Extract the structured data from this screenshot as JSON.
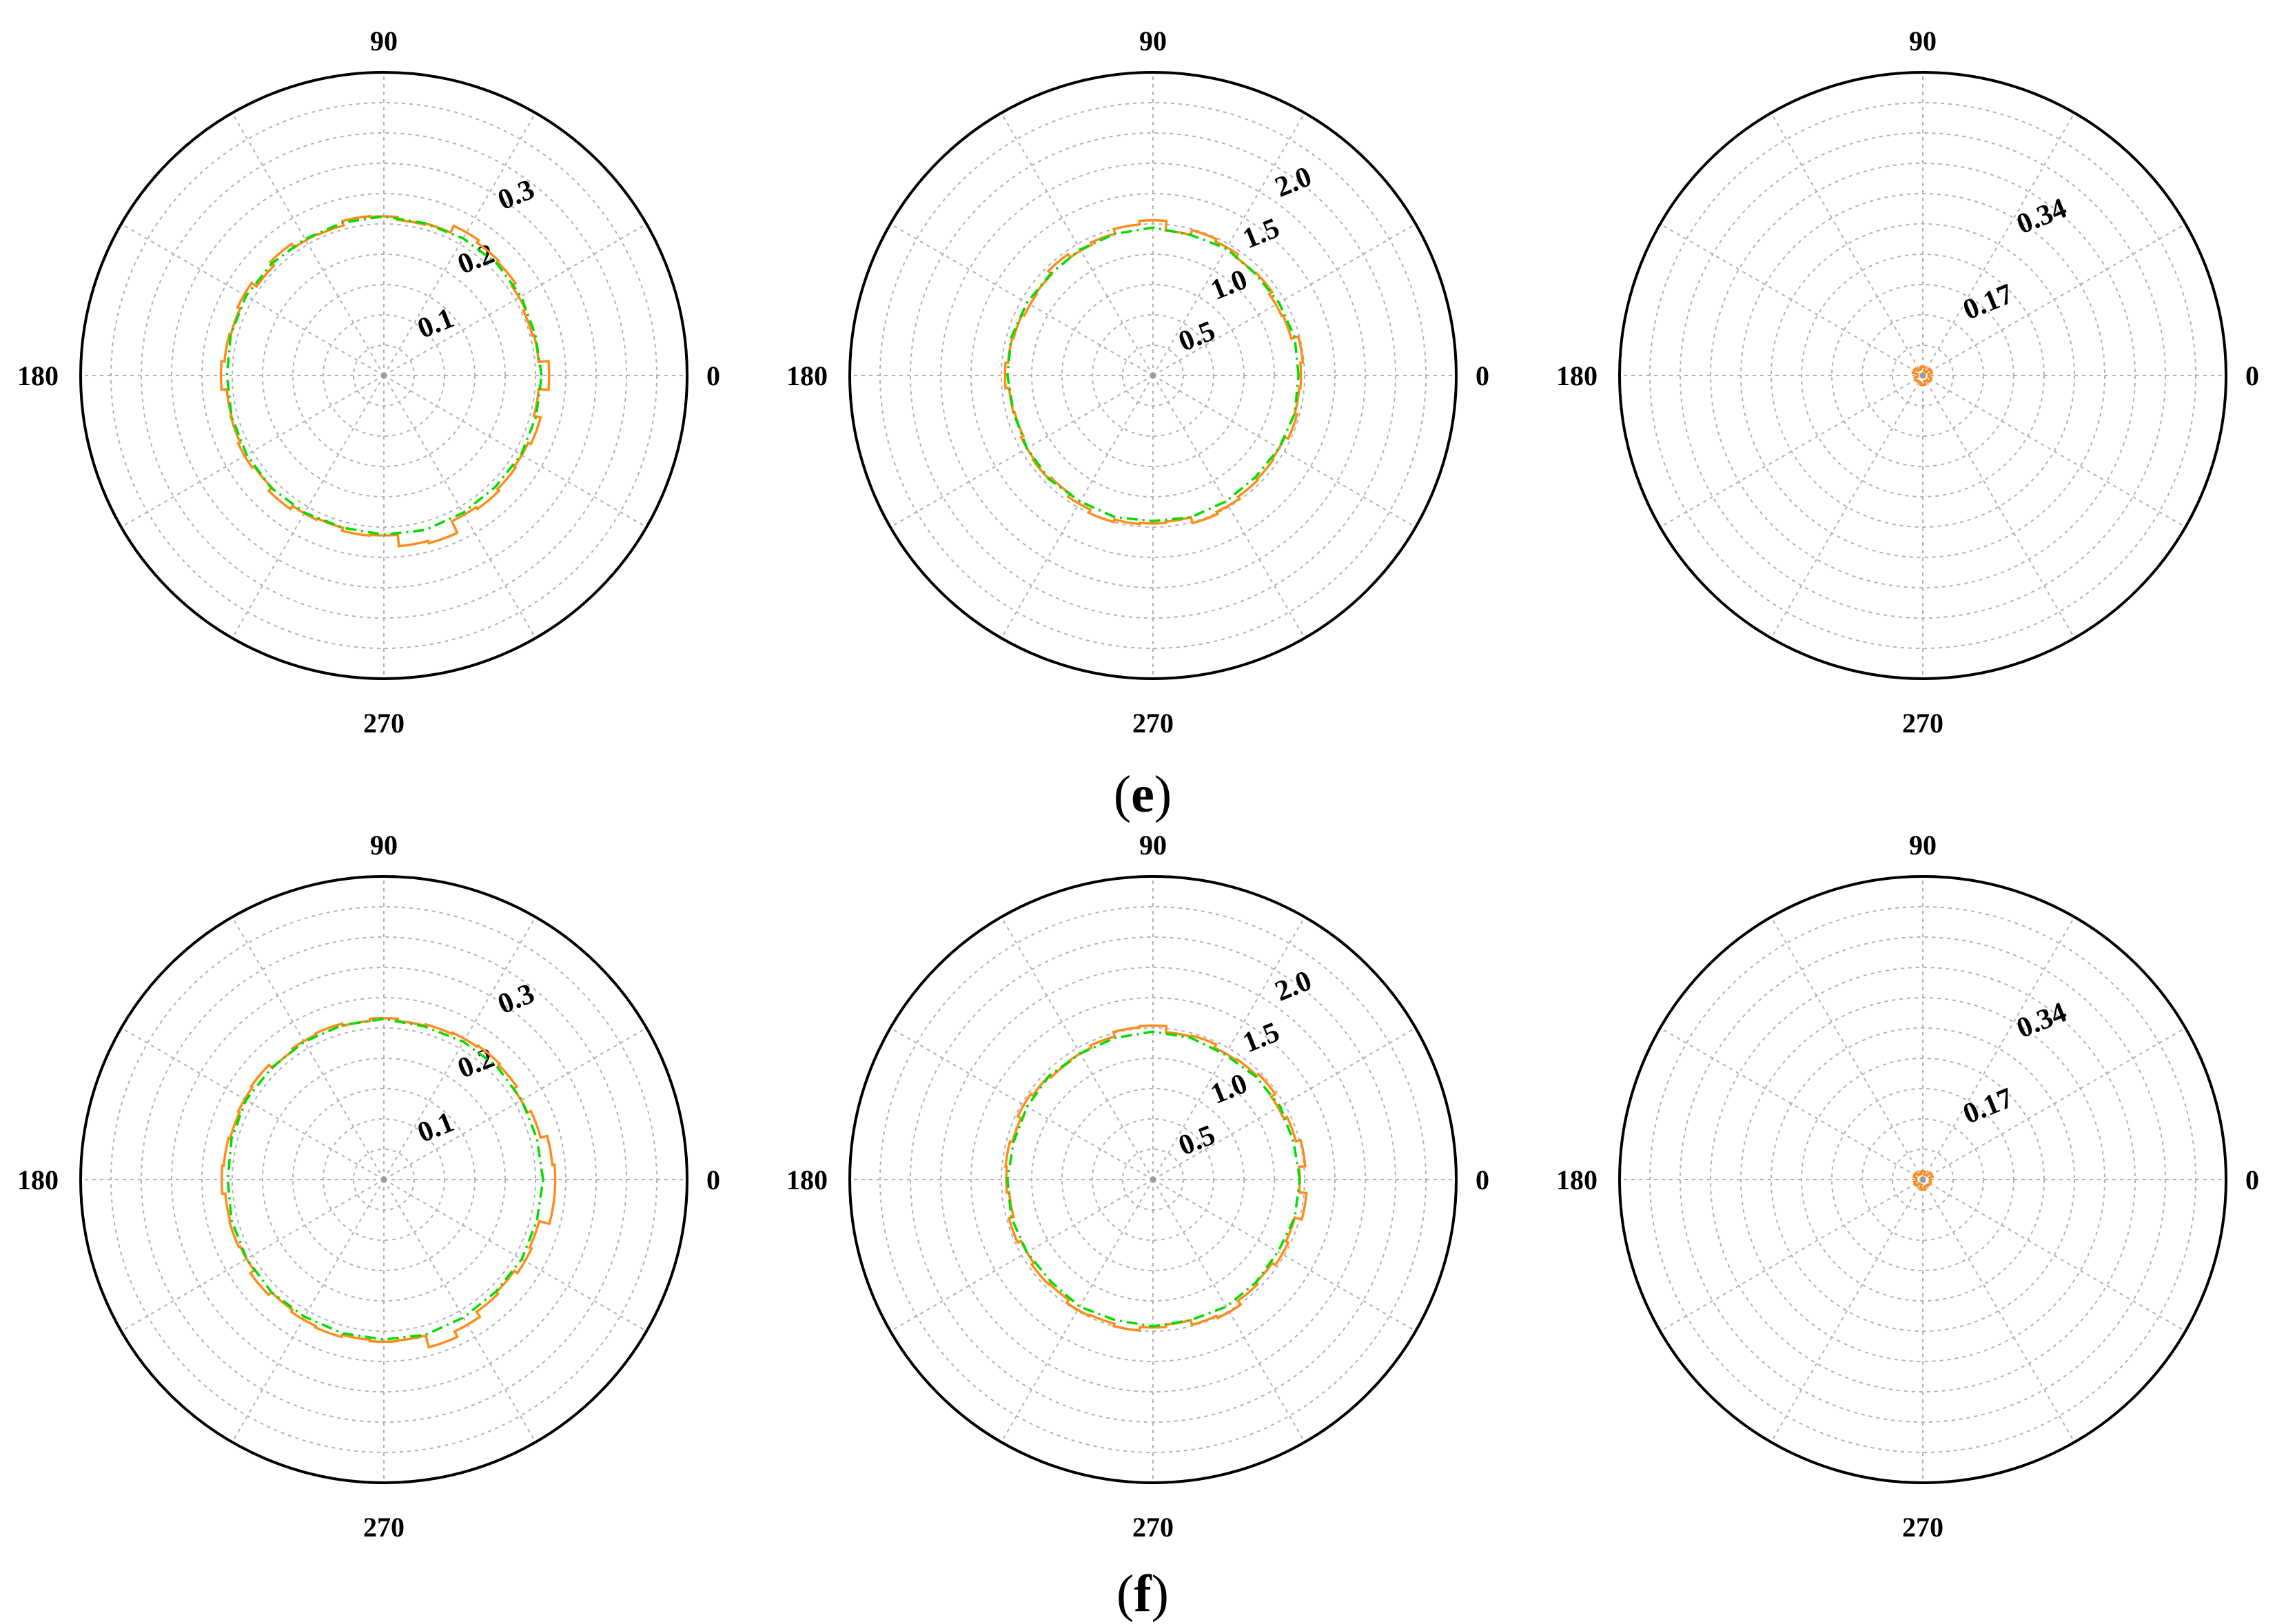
{
  "figure": {
    "panel_captions": [
      {
        "label": "e",
        "open": "(",
        "close": ")"
      },
      {
        "label": "f",
        "open": "(",
        "close": ")"
      }
    ]
  },
  "colors": {
    "series_1": "#ff8c1a",
    "series_2": "#00dd00",
    "grid": "#b0b0b0",
    "outer": "#000000"
  },
  "chart_data": [
    {
      "type": "polar-line",
      "panel": "e",
      "position": "left",
      "angle_ticks": [
        "0",
        "90",
        "180",
        "270"
      ],
      "radial_ticks": [
        "0.1",
        "0.2",
        "0.3"
      ],
      "r_max": 0.4,
      "series": [
        {
          "style": "step",
          "color": "#ff8c1a",
          "theta_deg": [
            0,
            10,
            20,
            30,
            40,
            50,
            60,
            70,
            80,
            90,
            100,
            110,
            120,
            130,
            140,
            150,
            160,
            170,
            180,
            190,
            200,
            210,
            220,
            230,
            240,
            250,
            260,
            270,
            280,
            290,
            300,
            310,
            320,
            330,
            340,
            350
          ],
          "r": [
            0.218,
            0.205,
            0.203,
            0.206,
            0.212,
            0.214,
            0.218,
            0.208,
            0.206,
            0.21,
            0.211,
            0.205,
            0.206,
            0.212,
            0.205,
            0.213,
            0.209,
            0.211,
            0.215,
            0.208,
            0.209,
            0.212,
            0.209,
            0.215,
            0.21,
            0.208,
            0.212,
            0.211,
            0.226,
            0.229,
            0.212,
            0.215,
            0.212,
            0.21,
            0.214,
            0.205
          ]
        },
        {
          "style": "dash-dot",
          "color": "#00dd00",
          "theta_deg": [
            0,
            15,
            30,
            45,
            60,
            75,
            90,
            105,
            120,
            135,
            150,
            165,
            180,
            195,
            210,
            225,
            240,
            255,
            270,
            285,
            300,
            315,
            330,
            345
          ],
          "r": [
            0.208,
            0.207,
            0.209,
            0.21,
            0.209,
            0.208,
            0.21,
            0.209,
            0.208,
            0.209,
            0.21,
            0.209,
            0.207,
            0.208,
            0.209,
            0.21,
            0.209,
            0.208,
            0.21,
            0.211,
            0.209,
            0.208,
            0.209,
            0.208
          ]
        }
      ]
    },
    {
      "type": "polar-line",
      "panel": "e",
      "position": "middle",
      "angle_ticks": [
        "0",
        "90",
        "180",
        "270"
      ],
      "radial_ticks": [
        "0.5",
        "1.0",
        "1.5",
        "2.0"
      ],
      "r_max": 2.5,
      "series": [
        {
          "style": "step",
          "color": "#ff8c1a",
          "theta_deg": [
            0,
            10,
            20,
            30,
            40,
            50,
            60,
            70,
            80,
            90,
            100,
            110,
            120,
            130,
            140,
            150,
            160,
            170,
            180,
            190,
            200,
            210,
            220,
            230,
            240,
            250,
            260,
            270,
            280,
            290,
            300,
            310,
            320,
            330,
            340,
            350
          ],
          "r": [
            1.22,
            1.24,
            1.18,
            1.17,
            1.2,
            1.19,
            1.22,
            1.24,
            1.2,
            1.28,
            1.25,
            1.21,
            1.19,
            1.22,
            1.18,
            1.17,
            1.19,
            1.2,
            1.22,
            1.19,
            1.18,
            1.2,
            1.21,
            1.19,
            1.22,
            1.25,
            1.23,
            1.22,
            1.21,
            1.26,
            1.24,
            1.22,
            1.21,
            1.2,
            1.23,
            1.21
          ]
        },
        {
          "style": "dash-dot",
          "color": "#00dd00",
          "theta_deg": [
            0,
            15,
            30,
            45,
            60,
            75,
            90,
            105,
            120,
            135,
            150,
            165,
            180,
            195,
            210,
            225,
            240,
            255,
            270,
            285,
            300,
            315,
            330,
            345
          ],
          "r": [
            1.2,
            1.21,
            1.2,
            1.19,
            1.21,
            1.2,
            1.22,
            1.21,
            1.2,
            1.19,
            1.2,
            1.21,
            1.2,
            1.19,
            1.2,
            1.21,
            1.2,
            1.21,
            1.2,
            1.21,
            1.2,
            1.19,
            1.2,
            1.21
          ]
        }
      ]
    },
    {
      "type": "polar-line",
      "panel": "e",
      "position": "right",
      "angle_ticks": [
        "0",
        "90",
        "180",
        "270"
      ],
      "radial_ticks": [
        "0.17",
        "0.34"
      ],
      "r_max": 0.51,
      "series": [
        {
          "style": "step",
          "color": "#ff8c1a",
          "theta_deg": [
            0,
            30,
            60,
            90,
            120,
            150,
            180,
            210,
            240,
            270,
            300,
            330
          ],
          "r": [
            0.01,
            0.016,
            0.008,
            0.015,
            0.011,
            0.017,
            0.009,
            0.014,
            0.012,
            0.016,
            0.01,
            0.015
          ]
        }
      ]
    },
    {
      "type": "polar-line",
      "panel": "f",
      "position": "left",
      "angle_ticks": [
        "0",
        "90",
        "180",
        "270"
      ],
      "radial_ticks": [
        "0.1",
        "0.2",
        "0.3"
      ],
      "r_max": 0.4,
      "series": [
        {
          "style": "step",
          "color": "#ff8c1a",
          "theta_deg": [
            0,
            10,
            20,
            30,
            40,
            50,
            60,
            70,
            80,
            90,
            100,
            110,
            120,
            130,
            140,
            150,
            160,
            170,
            180,
            190,
            200,
            210,
            220,
            230,
            240,
            250,
            260,
            270,
            280,
            290,
            300,
            310,
            320,
            330,
            340,
            350
          ],
          "r": [
            0.226,
            0.223,
            0.214,
            0.209,
            0.214,
            0.216,
            0.214,
            0.212,
            0.21,
            0.213,
            0.21,
            0.213,
            0.211,
            0.208,
            0.214,
            0.212,
            0.21,
            0.212,
            0.214,
            0.21,
            0.211,
            0.209,
            0.215,
            0.21,
            0.213,
            0.215,
            0.212,
            0.214,
            0.213,
            0.229,
            0.221,
            0.213,
            0.21,
            0.215,
            0.212,
            0.226
          ]
        },
        {
          "style": "dash-dot",
          "color": "#00dd00",
          "theta_deg": [
            0,
            15,
            30,
            45,
            60,
            75,
            90,
            105,
            120,
            135,
            150,
            165,
            180,
            195,
            210,
            225,
            240,
            255,
            270,
            285,
            300,
            315,
            330,
            345
          ],
          "r": [
            0.21,
            0.209,
            0.21,
            0.211,
            0.21,
            0.209,
            0.212,
            0.211,
            0.21,
            0.209,
            0.21,
            0.208,
            0.206,
            0.208,
            0.209,
            0.21,
            0.209,
            0.21,
            0.211,
            0.212,
            0.21,
            0.209,
            0.21,
            0.209
          ]
        }
      ]
    },
    {
      "type": "polar-line",
      "panel": "f",
      "position": "middle",
      "angle_ticks": [
        "0",
        "90",
        "180",
        "270"
      ],
      "radial_ticks": [
        "0.5",
        "1.0",
        "1.5",
        "2.0"
      ],
      "r_max": 2.5,
      "series": [
        {
          "style": "step",
          "color": "#ff8c1a",
          "theta_deg": [
            0,
            10,
            20,
            30,
            40,
            50,
            60,
            70,
            80,
            90,
            100,
            110,
            120,
            130,
            140,
            150,
            160,
            170,
            180,
            190,
            200,
            210,
            220,
            230,
            240,
            250,
            260,
            270,
            280,
            290,
            300,
            310,
            320,
            330,
            340,
            350
          ],
          "r": [
            1.21,
            1.26,
            1.22,
            1.19,
            1.23,
            1.21,
            1.2,
            1.23,
            1.22,
            1.27,
            1.26,
            1.22,
            1.2,
            1.19,
            1.21,
            1.23,
            1.2,
            1.22,
            1.21,
            1.19,
            1.23,
            1.2,
            1.22,
            1.21,
            1.24,
            1.23,
            1.25,
            1.22,
            1.2,
            1.24,
            1.26,
            1.22,
            1.2,
            1.23,
            1.21,
            1.27
          ]
        },
        {
          "style": "dash-dot",
          "color": "#00dd00",
          "theta_deg": [
            0,
            15,
            30,
            45,
            60,
            75,
            90,
            105,
            120,
            135,
            150,
            165,
            180,
            195,
            210,
            225,
            240,
            255,
            270,
            285,
            300,
            315,
            330,
            345
          ],
          "r": [
            1.21,
            1.2,
            1.21,
            1.2,
            1.19,
            1.21,
            1.22,
            1.21,
            1.2,
            1.21,
            1.2,
            1.19,
            1.2,
            1.21,
            1.2,
            1.19,
            1.21,
            1.2,
            1.21,
            1.2,
            1.21,
            1.2,
            1.19,
            1.21
          ]
        }
      ]
    },
    {
      "type": "polar-line",
      "panel": "f",
      "position": "right",
      "angle_ticks": [
        "0",
        "90",
        "180",
        "270"
      ],
      "radial_ticks": [
        "0.17",
        "0.34"
      ],
      "r_max": 0.51,
      "series": [
        {
          "style": "step",
          "color": "#ff8c1a",
          "theta_deg": [
            0,
            30,
            60,
            90,
            120,
            150,
            180,
            210,
            240,
            270,
            300,
            330
          ],
          "r": [
            0.012,
            0.017,
            0.009,
            0.014,
            0.01,
            0.016,
            0.011,
            0.015,
            0.009,
            0.017,
            0.012,
            0.014
          ]
        }
      ]
    }
  ]
}
